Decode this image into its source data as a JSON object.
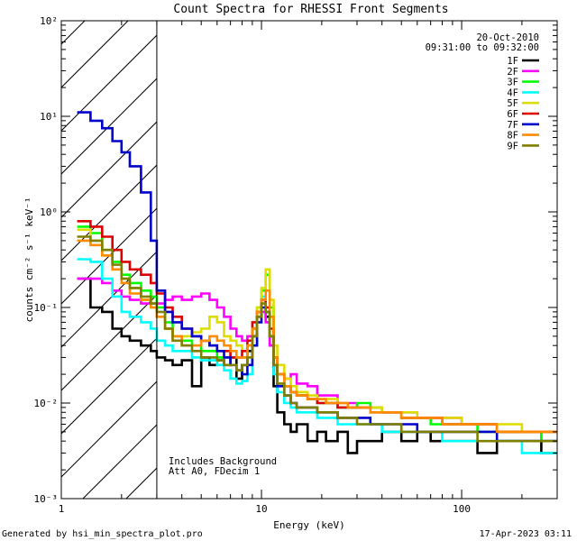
{
  "chart_data": {
    "type": "line",
    "title": "Count Spectra for RHESSI Front Segments",
    "date": "20-Oct-2010",
    "time_range": "09:31:00 to 09:32:00",
    "xlabel": "Energy (keV)",
    "ylabel": "counts cm⁻² s⁻¹ keV⁻¹",
    "xscale": "log",
    "yscale": "log",
    "xlim": [
      1,
      300
    ],
    "ylim": [
      0.001,
      100
    ],
    "x_ticks": [
      "1",
      "10",
      "100"
    ],
    "y_ticks": [
      "10⁻³",
      "10⁻²",
      "10⁻¹",
      "10⁰",
      "10¹",
      "10²"
    ],
    "excluded_region_keV": [
      1,
      3
    ],
    "annotations": [
      "Includes Background",
      "Att A0, FDecim 1"
    ],
    "series": [
      {
        "name": "1F",
        "color": "#000000",
        "x": [
          1.2,
          1.4,
          1.6,
          1.8,
          2.0,
          2.2,
          2.5,
          2.8,
          3.0,
          3.3,
          3.6,
          4.0,
          4.5,
          5.0,
          5.5,
          6.0,
          6.5,
          7.0,
          7.5,
          8.0,
          8.5,
          9.0,
          9.5,
          10.0,
          10.5,
          11.0,
          11.5,
          12,
          13,
          14,
          15,
          17,
          19,
          21,
          24,
          27,
          30,
          35,
          40,
          45,
          50,
          60,
          70,
          80,
          100,
          120,
          150,
          200,
          250,
          300
        ],
        "values": [
          0.2,
          0.1,
          0.09,
          0.06,
          0.05,
          0.045,
          0.04,
          0.035,
          0.03,
          0.028,
          0.025,
          0.028,
          0.015,
          0.03,
          0.025,
          0.028,
          0.025,
          0.03,
          0.018,
          0.025,
          0.035,
          0.05,
          0.08,
          0.12,
          0.08,
          0.04,
          0.015,
          0.008,
          0.006,
          0.005,
          0.006,
          0.004,
          0.005,
          0.004,
          0.005,
          0.003,
          0.004,
          0.004,
          0.005,
          0.005,
          0.004,
          0.005,
          0.004,
          0.004,
          0.004,
          0.003,
          0.004,
          0.004,
          0.003,
          0.003
        ]
      },
      {
        "name": "2F",
        "color": "#ff00ff",
        "x": [
          1.2,
          1.4,
          1.6,
          1.8,
          2.0,
          2.2,
          2.5,
          2.8,
          3.0,
          3.3,
          3.6,
          4.0,
          4.5,
          5.0,
          5.5,
          6.0,
          6.5,
          7.0,
          7.5,
          8.0,
          8.5,
          9.0,
          9.5,
          10.0,
          10.5,
          11.0,
          11.5,
          12,
          13,
          14,
          15,
          17,
          19,
          21,
          24,
          27,
          30,
          35,
          40,
          45,
          50,
          60,
          70,
          80,
          100,
          120,
          150,
          200,
          250,
          300
        ],
        "values": [
          0.2,
          0.2,
          0.18,
          0.15,
          0.13,
          0.12,
          0.11,
          0.11,
          0.11,
          0.12,
          0.13,
          0.12,
          0.13,
          0.14,
          0.12,
          0.1,
          0.08,
          0.06,
          0.05,
          0.045,
          0.05,
          0.06,
          0.08,
          0.09,
          0.07,
          0.04,
          0.025,
          0.02,
          0.018,
          0.02,
          0.016,
          0.015,
          0.012,
          0.012,
          0.01,
          0.01,
          0.009,
          0.009,
          0.008,
          0.008,
          0.008,
          0.007,
          0.007,
          0.007,
          0.006,
          0.006,
          0.005,
          0.005,
          0.004,
          0.004
        ]
      },
      {
        "name": "3F",
        "color": "#00ff00",
        "x": [
          1.2,
          1.4,
          1.6,
          1.8,
          2.0,
          2.2,
          2.5,
          2.8,
          3.0,
          3.3,
          3.6,
          4.0,
          4.5,
          5.0,
          5.5,
          6.0,
          6.5,
          7.0,
          7.5,
          8.0,
          8.5,
          9.0,
          9.5,
          10.0,
          10.5,
          11.0,
          11.5,
          12,
          13,
          14,
          15,
          17,
          19,
          21,
          24,
          27,
          30,
          35,
          40,
          45,
          50,
          60,
          70,
          80,
          100,
          120,
          150,
          200,
          250,
          300
        ],
        "values": [
          0.7,
          0.6,
          0.4,
          0.3,
          0.22,
          0.18,
          0.15,
          0.13,
          0.1,
          0.07,
          0.05,
          0.045,
          0.04,
          0.035,
          0.035,
          0.03,
          0.03,
          0.03,
          0.03,
          0.03,
          0.04,
          0.06,
          0.1,
          0.15,
          0.22,
          0.1,
          0.03,
          0.02,
          0.015,
          0.013,
          0.012,
          0.011,
          0.01,
          0.01,
          0.009,
          0.009,
          0.01,
          0.009,
          0.008,
          0.008,
          0.007,
          0.007,
          0.006,
          0.006,
          0.006,
          0.005,
          0.005,
          0.005,
          0.004,
          0.004
        ]
      },
      {
        "name": "4F",
        "color": "#00ffff",
        "x": [
          1.2,
          1.4,
          1.6,
          1.8,
          2.0,
          2.2,
          2.5,
          2.8,
          3.0,
          3.3,
          3.6,
          4.0,
          4.5,
          5.0,
          5.5,
          6.0,
          6.5,
          7.0,
          7.5,
          8.0,
          8.5,
          9.0,
          9.5,
          10.0,
          10.5,
          11.0,
          11.5,
          12,
          13,
          14,
          15,
          17,
          19,
          21,
          24,
          27,
          30,
          35,
          40,
          45,
          50,
          60,
          70,
          80,
          100,
          120,
          150,
          200,
          250,
          300
        ],
        "values": [
          0.32,
          0.3,
          0.2,
          0.13,
          0.09,
          0.08,
          0.07,
          0.06,
          0.045,
          0.04,
          0.035,
          0.035,
          0.03,
          0.028,
          0.028,
          0.025,
          0.022,
          0.018,
          0.016,
          0.017,
          0.02,
          0.04,
          0.08,
          0.13,
          0.09,
          0.05,
          0.02,
          0.013,
          0.01,
          0.009,
          0.008,
          0.008,
          0.007,
          0.007,
          0.006,
          0.006,
          0.006,
          0.006,
          0.005,
          0.005,
          0.005,
          0.005,
          0.005,
          0.004,
          0.004,
          0.004,
          0.004,
          0.003,
          0.003,
          0.003
        ]
      },
      {
        "name": "5F",
        "color": "#dddd00",
        "x": [
          1.2,
          1.4,
          1.6,
          1.8,
          2.0,
          2.2,
          2.5,
          2.8,
          3.0,
          3.3,
          3.6,
          4.0,
          4.5,
          5.0,
          5.5,
          6.0,
          6.5,
          7.0,
          7.5,
          8.0,
          8.5,
          9.0,
          9.5,
          10.0,
          10.5,
          11.0,
          11.5,
          12,
          13,
          14,
          15,
          17,
          19,
          21,
          24,
          27,
          30,
          35,
          40,
          45,
          50,
          60,
          70,
          80,
          100,
          120,
          150,
          200,
          250,
          300
        ],
        "values": [
          0.65,
          0.5,
          0.35,
          0.25,
          0.2,
          0.16,
          0.12,
          0.1,
          0.08,
          0.06,
          0.05,
          0.05,
          0.055,
          0.06,
          0.08,
          0.07,
          0.05,
          0.045,
          0.04,
          0.035,
          0.04,
          0.06,
          0.1,
          0.16,
          0.25,
          0.12,
          0.04,
          0.025,
          0.018,
          0.015,
          0.013,
          0.012,
          0.011,
          0.011,
          0.01,
          0.009,
          0.009,
          0.009,
          0.008,
          0.008,
          0.008,
          0.007,
          0.007,
          0.007,
          0.006,
          0.006,
          0.006,
          0.005,
          0.005,
          0.005
        ]
      },
      {
        "name": "6F",
        "color": "#dd0000",
        "x": [
          1.2,
          1.4,
          1.6,
          1.8,
          2.0,
          2.2,
          2.5,
          2.8,
          3.0,
          3.3,
          3.6,
          4.0,
          4.5,
          5.0,
          5.5,
          6.0,
          6.5,
          7.0,
          7.5,
          8.0,
          8.5,
          9.0,
          9.5,
          10.0,
          10.5,
          11.0,
          11.5,
          12,
          13,
          14,
          15,
          17,
          19,
          21,
          24,
          27,
          30,
          35,
          40,
          45,
          50,
          60,
          70,
          80,
          100,
          120,
          150,
          200,
          250,
          300
        ],
        "values": [
          0.8,
          0.7,
          0.55,
          0.4,
          0.3,
          0.25,
          0.22,
          0.18,
          0.14,
          0.1,
          0.08,
          0.06,
          0.05,
          0.045,
          0.04,
          0.035,
          0.035,
          0.03,
          0.03,
          0.035,
          0.045,
          0.07,
          0.09,
          0.12,
          0.1,
          0.06,
          0.03,
          0.02,
          0.015,
          0.013,
          0.012,
          0.011,
          0.01,
          0.01,
          0.009,
          0.009,
          0.009,
          0.008,
          0.008,
          0.008,
          0.007,
          0.007,
          0.007,
          0.006,
          0.006,
          0.006,
          0.005,
          0.005,
          0.005,
          0.005
        ]
      },
      {
        "name": "7F",
        "color": "#0000cc",
        "x": [
          1.2,
          1.4,
          1.6,
          1.8,
          2.0,
          2.2,
          2.5,
          2.8,
          3.0,
          3.3,
          3.6,
          4.0,
          4.5,
          5.0,
          5.5,
          6.0,
          6.5,
          7.0,
          7.5,
          8.0,
          8.5,
          9.0,
          9.5,
          10.0,
          10.5,
          11.0,
          11.5,
          12,
          13,
          14,
          15,
          17,
          19,
          21,
          24,
          27,
          30,
          35,
          40,
          45,
          50,
          60,
          70,
          80,
          100,
          120,
          150,
          200,
          250,
          300
        ],
        "values": [
          11,
          9,
          7.5,
          5.5,
          4.2,
          3.0,
          1.6,
          0.5,
          0.15,
          0.09,
          0.07,
          0.06,
          0.05,
          0.045,
          0.04,
          0.035,
          0.03,
          0.025,
          0.022,
          0.02,
          0.025,
          0.04,
          0.07,
          0.1,
          0.09,
          0.05,
          0.025,
          0.015,
          0.012,
          0.01,
          0.009,
          0.009,
          0.008,
          0.008,
          0.007,
          0.007,
          0.007,
          0.006,
          0.006,
          0.006,
          0.006,
          0.005,
          0.005,
          0.005,
          0.005,
          0.005,
          0.004,
          0.004,
          0.004,
          0.004
        ]
      },
      {
        "name": "8F",
        "color": "#ff8c00",
        "x": [
          1.2,
          1.4,
          1.6,
          1.8,
          2.0,
          2.2,
          2.5,
          2.8,
          3.0,
          3.3,
          3.6,
          4.0,
          4.5,
          5.0,
          5.5,
          6.0,
          6.5,
          7.0,
          7.5,
          8.0,
          8.5,
          9.0,
          9.5,
          10.0,
          10.5,
          11.0,
          11.5,
          12,
          13,
          14,
          15,
          17,
          19,
          21,
          24,
          27,
          30,
          35,
          40,
          45,
          50,
          60,
          70,
          80,
          100,
          120,
          150,
          200,
          250,
          300
        ],
        "values": [
          0.5,
          0.45,
          0.35,
          0.25,
          0.18,
          0.14,
          0.12,
          0.1,
          0.08,
          0.06,
          0.05,
          0.04,
          0.04,
          0.045,
          0.05,
          0.045,
          0.04,
          0.035,
          0.03,
          0.03,
          0.04,
          0.06,
          0.09,
          0.12,
          0.15,
          0.08,
          0.03,
          0.02,
          0.015,
          0.013,
          0.012,
          0.011,
          0.011,
          0.01,
          0.01,
          0.009,
          0.009,
          0.008,
          0.008,
          0.008,
          0.007,
          0.007,
          0.007,
          0.006,
          0.006,
          0.006,
          0.005,
          0.005,
          0.005,
          0.005
        ]
      },
      {
        "name": "9F",
        "color": "#7f7f00",
        "x": [
          1.2,
          1.4,
          1.6,
          1.8,
          2.0,
          2.2,
          2.5,
          2.8,
          3.0,
          3.3,
          3.6,
          4.0,
          4.5,
          5.0,
          5.5,
          6.0,
          6.5,
          7.0,
          7.5,
          8.0,
          8.5,
          9.0,
          9.5,
          10.0,
          10.5,
          11.0,
          11.5,
          12,
          13,
          14,
          15,
          17,
          19,
          21,
          24,
          27,
          30,
          35,
          40,
          45,
          50,
          60,
          70,
          80,
          100,
          120,
          150,
          200,
          250,
          300
        ],
        "values": [
          0.55,
          0.5,
          0.4,
          0.28,
          0.2,
          0.16,
          0.13,
          0.11,
          0.09,
          0.06,
          0.045,
          0.04,
          0.035,
          0.03,
          0.03,
          0.028,
          0.025,
          0.025,
          0.022,
          0.025,
          0.03,
          0.05,
          0.08,
          0.11,
          0.09,
          0.05,
          0.025,
          0.016,
          0.012,
          0.01,
          0.009,
          0.009,
          0.008,
          0.008,
          0.007,
          0.007,
          0.006,
          0.006,
          0.006,
          0.006,
          0.005,
          0.005,
          0.005,
          0.005,
          0.005,
          0.004,
          0.004,
          0.004,
          0.004,
          0.004
        ]
      }
    ]
  },
  "footer": {
    "left": "Generated by hsi_min_spectra_plot.pro",
    "right": "17-Apr-2023 03:11"
  }
}
